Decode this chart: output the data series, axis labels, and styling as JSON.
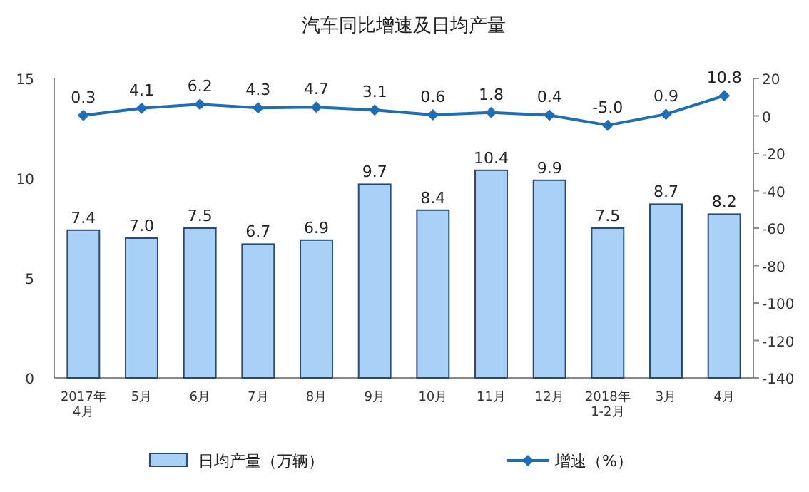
{
  "chart_data": {
    "type": "bar",
    "title": "汽车同比增速及日均产量",
    "categories": [
      "2017年\n4月",
      "5月",
      "6月",
      "7月",
      "8月",
      "9月",
      "10月",
      "11月",
      "12月",
      "2018年\n1-2月",
      "3月",
      "4月"
    ],
    "series": [
      {
        "name": "日均产量（万辆）",
        "color": "#a9d1f7",
        "values": [
          7.4,
          7.0,
          7.5,
          6.7,
          6.9,
          9.7,
          8.4,
          10.4,
          9.9,
          7.5,
          8.7,
          8.2
        ],
        "value_labels": [
          "7.4",
          "7.0",
          "7.5",
          "6.7",
          "6.9",
          "9.7",
          "8.4",
          "10.4",
          "9.9",
          "7.5",
          "8.7",
          "8.2"
        ]
      },
      {
        "name": "增速（%）",
        "type": "line",
        "axis": "y2",
        "color": "#1f6db5",
        "marker": "diamond",
        "values": [
          0.3,
          4.1,
          6.2,
          4.3,
          4.7,
          3.1,
          0.6,
          1.8,
          0.4,
          -5.0,
          0.9,
          10.8
        ],
        "value_labels": [
          "0.3",
          "4.1",
          "6.2",
          "4.3",
          "4.7",
          "3.1",
          "0.6",
          "1.8",
          "0.4",
          "-5.0",
          "0.9",
          "10.8"
        ]
      }
    ],
    "ylim": [
      0,
      15
    ],
    "yticks": [
      0,
      5,
      10,
      15
    ],
    "y2lim": [
      -140,
      20
    ],
    "y2ticks": [
      -140,
      -120,
      -100,
      -80,
      -60,
      -40,
      -20,
      0,
      20
    ],
    "legend": "bottom"
  }
}
